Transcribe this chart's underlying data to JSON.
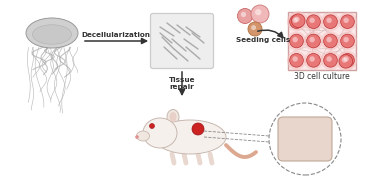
{
  "bg_color": "#ffffff",
  "arrow_color": "#333333",
  "label_decell": "Decellularization",
  "label_seed": "Seeding cells",
  "label_tissue": "Tissue\nrepair",
  "label_3d": "3D cell culture",
  "jf_bell_color": "#d0d0d0",
  "jf_bell_edge": "#999999",
  "jf_tentacle_color": "#b0b0b0",
  "matrix_bg": "#e8e8e8",
  "matrix_edge": "#bbbbbb",
  "matrix_fiber": "#aaaaaa",
  "cell_bg": "#f8e0e0",
  "cell_network": "#c0a8a8",
  "cell_fill": "#e87878",
  "cell_outer": "#f5c0c0",
  "seed_c1": "#e8a0a0",
  "seed_c2": "#d4956d",
  "seed_c3": "#e8b8b8",
  "mouse_body": "#f0e8e0",
  "mouse_edge": "#c8b0a0",
  "mouse_tail": "#dca890",
  "mouse_wound": "#cc3333",
  "implant_fill": "#e8d8d0",
  "implant_edge": "#c0a898",
  "circ_edge": "#888888"
}
